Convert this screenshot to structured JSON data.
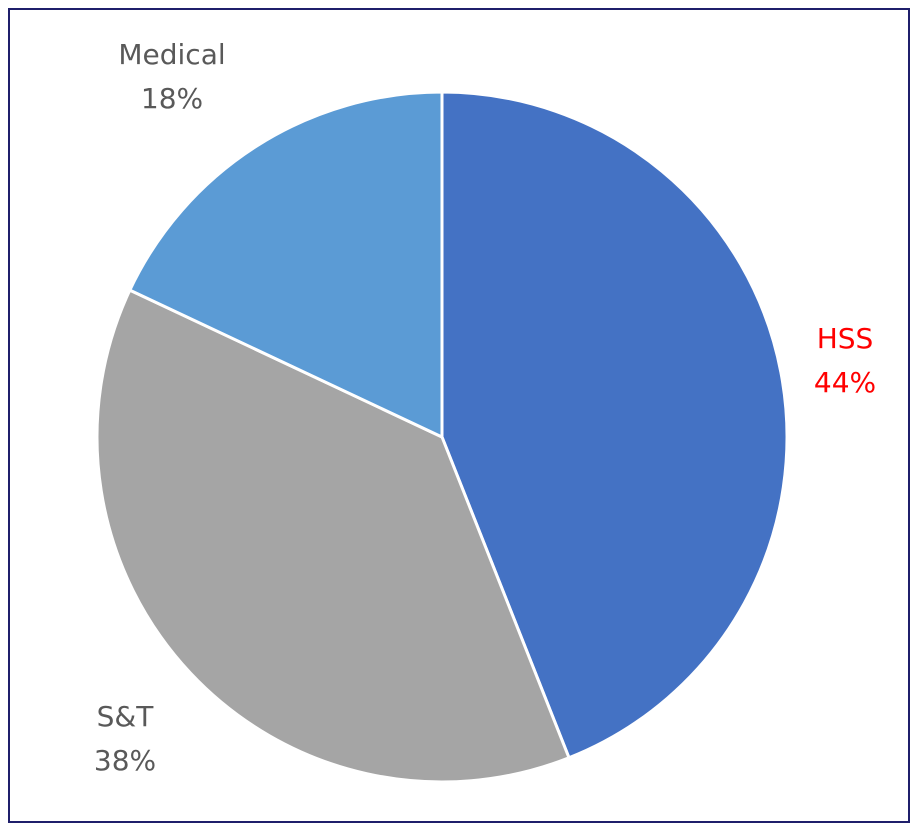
{
  "chart_data": {
    "type": "pie",
    "categories": [
      "HSS",
      "S&T",
      "Medical"
    ],
    "values": [
      44,
      38,
      18
    ],
    "value_labels": [
      "44%",
      "38%",
      "18%"
    ],
    "colors": [
      "#4472c4",
      "#a5a5a5",
      "#5b9bd5"
    ],
    "label_colors": [
      "#ff0000",
      "#595959",
      "#595959"
    ]
  }
}
